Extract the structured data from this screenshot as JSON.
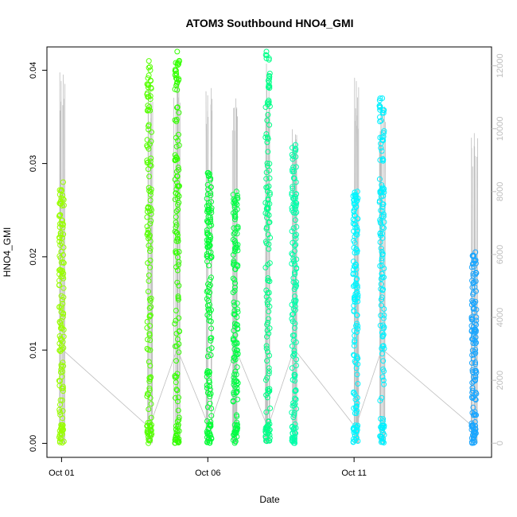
{
  "chart_data": {
    "type": "scatter",
    "title": "ATOM3 Southbound HNO4_GMI",
    "xlabel": "Date",
    "ylabel": "HNO4_GMI",
    "x_ticks": [
      "Oct 01",
      "Oct 06",
      "Oct 11"
    ],
    "x_tick_days": [
      1,
      6,
      11
    ],
    "x_range_days": [
      0.5,
      15.7
    ],
    "y_ticks": [
      0.0,
      0.01,
      0.02,
      0.03,
      0.04
    ],
    "y_tick_labels": [
      "0.00",
      "0.01",
      "0.02",
      "0.03",
      "0.04"
    ],
    "y_range": [
      -0.0015,
      0.0425
    ],
    "y2_ticks": [
      0,
      2000,
      4000,
      6000,
      8000,
      10000,
      12000
    ],
    "y2_tick_labels": [
      "0",
      "2000",
      "4000",
      "6000",
      "8000",
      "10000",
      "12000"
    ],
    "y2_range": [
      -450,
      12600
    ],
    "grid": false,
    "legend": "none",
    "colors": {
      "altitude_line": "#bebebe",
      "axis": "#000000",
      "right_axis": "#bdbdbd"
    },
    "flights": [
      {
        "day": 1.0,
        "y_min": 0.0,
        "y_max": 0.028,
        "color": "#99ff00",
        "alt_max": 12000
      },
      {
        "day": 4.0,
        "y_min": 0.0,
        "y_max": 0.041,
        "color": "#55ff00",
        "alt_max": 11800
      },
      {
        "day": 4.95,
        "y_min": 0.0,
        "y_max": 0.042,
        "color": "#33ff00",
        "alt_max": 12300
      },
      {
        "day": 6.05,
        "y_min": 0.0,
        "y_max": 0.029,
        "color": "#00ff33",
        "alt_max": 11300
      },
      {
        "day": 6.95,
        "y_min": 0.0,
        "y_max": 0.027,
        "color": "#00ff44",
        "alt_max": 11200
      },
      {
        "day": 8.05,
        "y_min": 0.0,
        "y_max": 0.042,
        "color": "#00ff88",
        "alt_max": 12100
      },
      {
        "day": 8.95,
        "y_min": 0.0,
        "y_max": 0.032,
        "color": "#00ffaa",
        "alt_max": 10400
      },
      {
        "day": 11.05,
        "y_min": 0.0,
        "y_max": 0.027,
        "color": "#00f5ff",
        "alt_max": 11700
      },
      {
        "day": 11.95,
        "y_min": 0.0,
        "y_max": 0.037,
        "color": "#00f0ff",
        "alt_max": 11000
      },
      {
        "day": 15.1,
        "y_min": 0.0,
        "y_max": 0.0205,
        "color": "#1aa6ff",
        "alt_max": 10000
      }
    ]
  }
}
